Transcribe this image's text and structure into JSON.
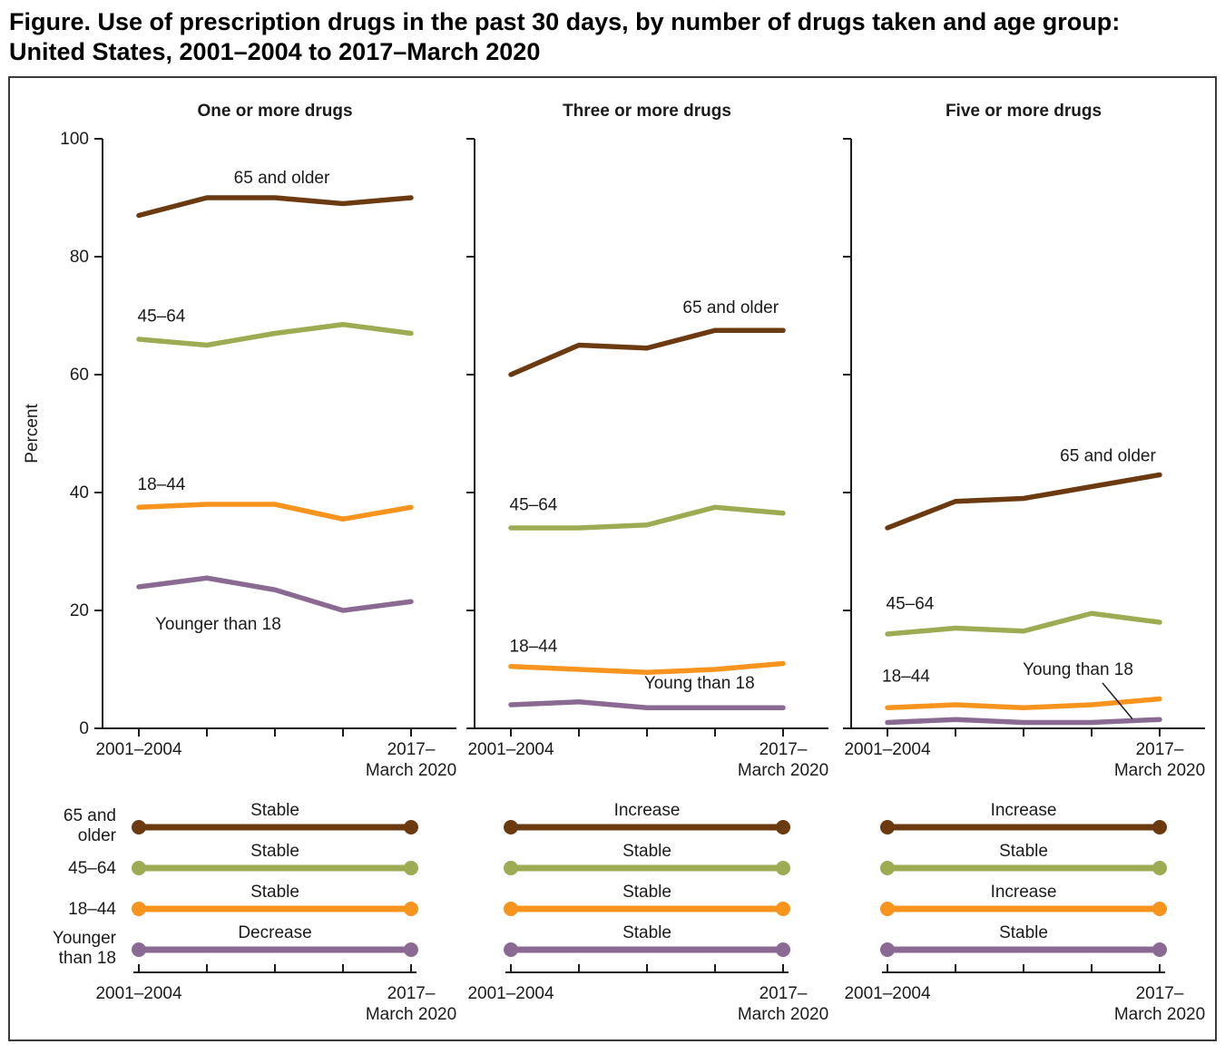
{
  "title": {
    "line1": "Figure. Use of prescription drugs in the past 30 days, by number of drugs taken and age group:",
    "line2": "United States, 2001–2004 to 2017–March 2020"
  },
  "chart_data": {
    "type": "line",
    "ylabel": "Percent",
    "ylim": [
      0,
      100
    ],
    "y_ticks": [
      0,
      20,
      40,
      60,
      80,
      100
    ],
    "x_tick_count": 5,
    "x_axis_labels": {
      "first": "2001–2004",
      "last_line1": "2017–",
      "last_line2": "March 2020"
    },
    "age_groups": [
      {
        "name": "65 and older",
        "color": "#6B3A10",
        "legend_label_lines": [
          "65 and",
          "older"
        ]
      },
      {
        "name": "45–64",
        "color": "#9DAC52",
        "legend_label_lines": [
          "45–64"
        ]
      },
      {
        "name": "18–44",
        "color": "#F7941E",
        "legend_label_lines": [
          "18–44"
        ]
      },
      {
        "name": "Younger than 18",
        "color": "#8A6A92",
        "legend_label_lines": [
          "Younger",
          "than 18"
        ]
      }
    ],
    "panels": [
      {
        "title": "One or more drugs",
        "series": [
          {
            "group": "65 and older",
            "values": [
              87,
              90,
              90,
              89,
              90
            ],
            "trend": "Stable"
          },
          {
            "group": "45–64",
            "values": [
              66,
              65,
              67,
              68.5,
              67
            ],
            "trend": "Stable"
          },
          {
            "group": "18–44",
            "values": [
              37.5,
              38,
              38,
              35.5,
              37.5
            ],
            "trend": "Stable"
          },
          {
            "group": "Younger than 18",
            "values": [
              24,
              25.5,
              23.5,
              20,
              21.5
            ],
            "trend": "Decrease"
          }
        ],
        "annotations": [
          {
            "text": "65 and older",
            "x": 2.1,
            "y": 92.5,
            "anchor": "middle"
          },
          {
            "text": "45–64",
            "x": -0.02,
            "y": 69,
            "anchor": "start"
          },
          {
            "text": "18–44",
            "x": -0.02,
            "y": 40.5,
            "anchor": "start"
          },
          {
            "text": "Younger than 18",
            "x": 0.24,
            "y": 16.8,
            "anchor": "start"
          }
        ]
      },
      {
        "title": "Three or more drugs",
        "series": [
          {
            "group": "65 and older",
            "values": [
              60,
              65,
              64.5,
              67.5,
              67.5
            ],
            "trend": "Increase"
          },
          {
            "group": "45–64",
            "values": [
              34,
              34,
              34.5,
              37.5,
              36.5
            ],
            "trend": "Stable"
          },
          {
            "group": "18–44",
            "values": [
              10.5,
              10,
              9.5,
              10,
              11
            ],
            "trend": "Stable"
          },
          {
            "group": "Younger than 18",
            "values": [
              4,
              4.5,
              3.5,
              3.5,
              3.5
            ],
            "trend": "Stable"
          }
        ],
        "annotations": [
          {
            "text": "65 and older",
            "x": 3.23,
            "y": 70.5,
            "anchor": "middle"
          },
          {
            "text": "45–64",
            "x": -0.02,
            "y": 37,
            "anchor": "start"
          },
          {
            "text": "18–44",
            "x": -0.02,
            "y": 13,
            "anchor": "start"
          },
          {
            "text": "Young than 18",
            "x": 2.77,
            "y": 6.8,
            "anchor": "middle"
          }
        ]
      },
      {
        "title": "Five or more drugs",
        "series": [
          {
            "group": "65 and older",
            "values": [
              34,
              38.5,
              39,
              41,
              43
            ],
            "trend": "Increase"
          },
          {
            "group": "45–64",
            "values": [
              16,
              17,
              16.5,
              19.5,
              18
            ],
            "trend": "Stable"
          },
          {
            "group": "18–44",
            "values": [
              3.5,
              4,
              3.5,
              4,
              5
            ],
            "trend": "Increase"
          },
          {
            "group": "Younger than 18",
            "values": [
              1,
              1.5,
              1,
              1,
              1.5
            ],
            "trend": "Stable"
          }
        ],
        "annotations": [
          {
            "text": "65 and older",
            "x": 3.24,
            "y": 45.3,
            "anchor": "middle"
          },
          {
            "text": "45–64",
            "x": -0.02,
            "y": 20.2,
            "anchor": "start"
          },
          {
            "text": "18–44",
            "x": -0.08,
            "y": 7.9,
            "anchor": "start"
          },
          {
            "text": "Young than 18",
            "x": 2.8,
            "y": 9.1,
            "anchor": "middle",
            "pointer": {
              "x1": 3.16,
              "y1": 7.7,
              "x2": 3.6,
              "y2": 1.6
            }
          }
        ]
      }
    ]
  }
}
